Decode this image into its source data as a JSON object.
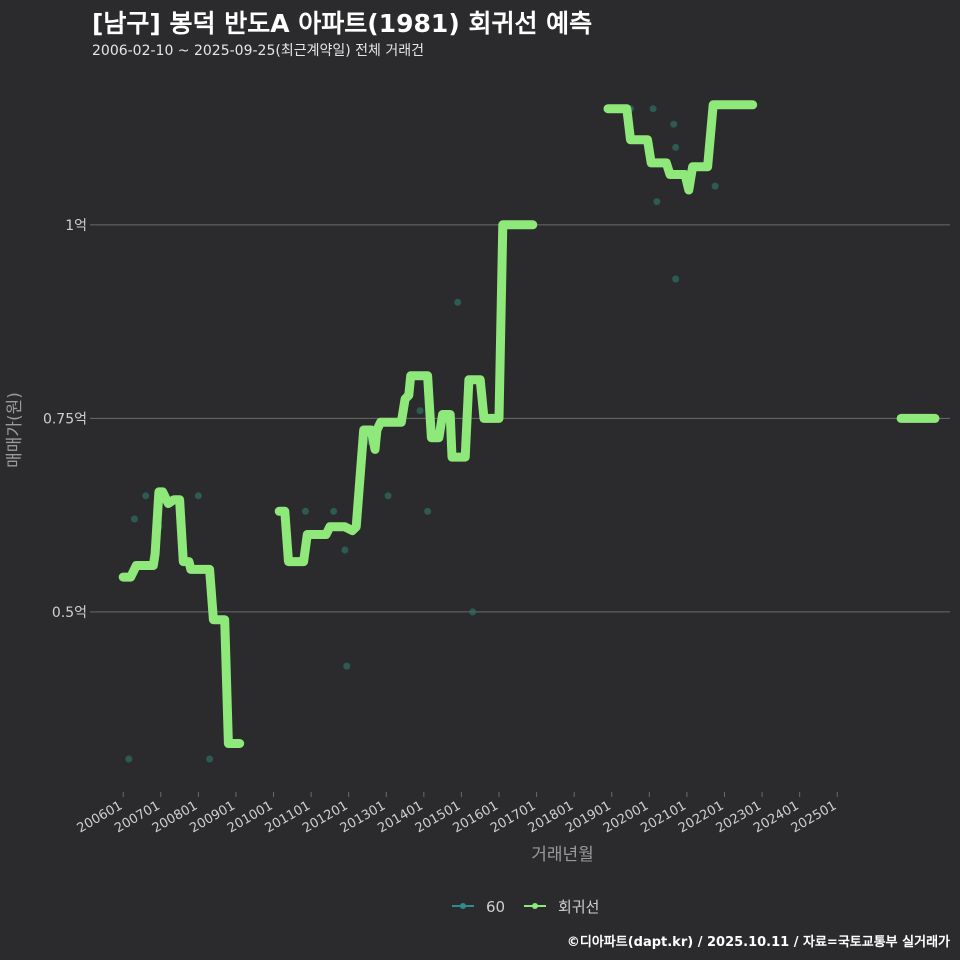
{
  "header": {
    "title": "[남구] 봉덕 반도A 아파트(1981) 회귀선 예측",
    "subtitle": "2006-02-10 ~ 2025-09-25(최근계약일) 전체 거래건"
  },
  "caption": "©디아파트(dapt.kr) / 2025.10.11 / 자료=국토교통부 실거래가",
  "colors": {
    "background": "#2b2b2d",
    "grid": "#6b6b6b",
    "regression": "#8ee87a",
    "points": "#2f6f63",
    "legend_60": "#2f8c8c",
    "axis_text": "#cfcfcf",
    "axis_title": "#9a9a9a"
  },
  "chart_data": {
    "type": "line",
    "xlabel": "거래년월",
    "ylabel": "매매가(원)",
    "x_ticks": [
      "200601",
      "200701",
      "200801",
      "200901",
      "201001",
      "201101",
      "201201",
      "201301",
      "201401",
      "201501",
      "201601",
      "201701",
      "201801",
      "201901",
      "202001",
      "202101",
      "202201",
      "202301",
      "202401",
      "202501"
    ],
    "y_ticks": [
      {
        "value": 0.5,
        "label": "0.5억"
      },
      {
        "value": 0.75,
        "label": "0.75억"
      },
      {
        "value": 1.0,
        "label": "1억"
      }
    ],
    "ylim": [
      0.27,
      1.2
    ],
    "xlim": [
      2005.25,
      2028.0
    ],
    "legend": [
      {
        "name": "60",
        "color_key": "legend_60"
      },
      {
        "name": "회귀선",
        "color_key": "regression"
      }
    ],
    "scatter_points": [
      [
        2006.15,
        0.31
      ],
      [
        2006.3,
        0.62
      ],
      [
        2006.6,
        0.65
      ],
      [
        2006.95,
        0.61
      ],
      [
        2008.0,
        0.65
      ],
      [
        2008.3,
        0.31
      ],
      [
        2010.85,
        0.63
      ],
      [
        2011.6,
        0.63
      ],
      [
        2011.9,
        0.58
      ],
      [
        2011.95,
        0.43
      ],
      [
        2012.55,
        0.72
      ],
      [
        2013.05,
        0.65
      ],
      [
        2013.9,
        0.76
      ],
      [
        2014.1,
        0.63
      ],
      [
        2014.9,
        0.9
      ],
      [
        2015.3,
        0.5
      ],
      [
        2019.5,
        1.15
      ],
      [
        2020.1,
        1.15
      ],
      [
        2020.2,
        1.03
      ],
      [
        2020.65,
        1.13
      ],
      [
        2020.7,
        1.1
      ],
      [
        2020.7,
        0.93
      ],
      [
        2021.75,
        1.05
      ]
    ],
    "series": [
      {
        "name": "회귀선",
        "segments": [
          [
            [
              2006.0,
              0.545
            ],
            [
              2006.2,
              0.545
            ],
            [
              2006.35,
              0.56
            ],
            [
              2006.8,
              0.56
            ],
            [
              2006.85,
              0.575
            ],
            [
              2006.95,
              0.655
            ],
            [
              2007.05,
              0.655
            ],
            [
              2007.2,
              0.64
            ],
            [
              2007.35,
              0.645
            ],
            [
              2007.5,
              0.645
            ],
            [
              2007.6,
              0.565
            ],
            [
              2007.75,
              0.565
            ],
            [
              2007.8,
              0.555
            ],
            [
              2008.3,
              0.555
            ],
            [
              2008.4,
              0.49
            ],
            [
              2008.7,
              0.49
            ],
            [
              2008.8,
              0.33
            ],
            [
              2009.1,
              0.33
            ]
          ],
          [
            [
              2010.15,
              0.63
            ],
            [
              2010.3,
              0.63
            ],
            [
              2010.4,
              0.565
            ],
            [
              2010.8,
              0.565
            ],
            [
              2010.9,
              0.6
            ],
            [
              2011.4,
              0.6
            ],
            [
              2011.5,
              0.61
            ],
            [
              2011.9,
              0.61
            ],
            [
              2012.1,
              0.605
            ],
            [
              2012.2,
              0.61
            ],
            [
              2012.4,
              0.735
            ],
            [
              2012.6,
              0.735
            ],
            [
              2012.7,
              0.71
            ],
            [
              2012.75,
              0.735
            ],
            [
              2012.85,
              0.745
            ],
            [
              2013.4,
              0.745
            ],
            [
              2013.5,
              0.775
            ],
            [
              2013.6,
              0.78
            ],
            [
              2013.65,
              0.805
            ],
            [
              2014.1,
              0.805
            ],
            [
              2014.2,
              0.725
            ],
            [
              2014.4,
              0.725
            ],
            [
              2014.5,
              0.755
            ],
            [
              2014.7,
              0.755
            ],
            [
              2014.75,
              0.7
            ],
            [
              2015.1,
              0.7
            ],
            [
              2015.2,
              0.8
            ],
            [
              2015.5,
              0.8
            ],
            [
              2015.6,
              0.75
            ],
            [
              2016.0,
              0.75
            ],
            [
              2016.1,
              1.0
            ],
            [
              2016.9,
              1.0
            ]
          ],
          [
            [
              2018.9,
              1.15
            ],
            [
              2019.4,
              1.15
            ],
            [
              2019.5,
              1.11
            ],
            [
              2019.95,
              1.11
            ],
            [
              2020.05,
              1.08
            ],
            [
              2020.45,
              1.08
            ],
            [
              2020.55,
              1.065
            ],
            [
              2020.95,
              1.065
            ],
            [
              2021.05,
              1.045
            ],
            [
              2021.15,
              1.075
            ],
            [
              2021.55,
              1.075
            ],
            [
              2021.7,
              1.155
            ],
            [
              2022.75,
              1.155
            ]
          ],
          [
            [
              2026.7,
              0.75
            ],
            [
              2027.6,
              0.75
            ]
          ]
        ]
      }
    ]
  }
}
